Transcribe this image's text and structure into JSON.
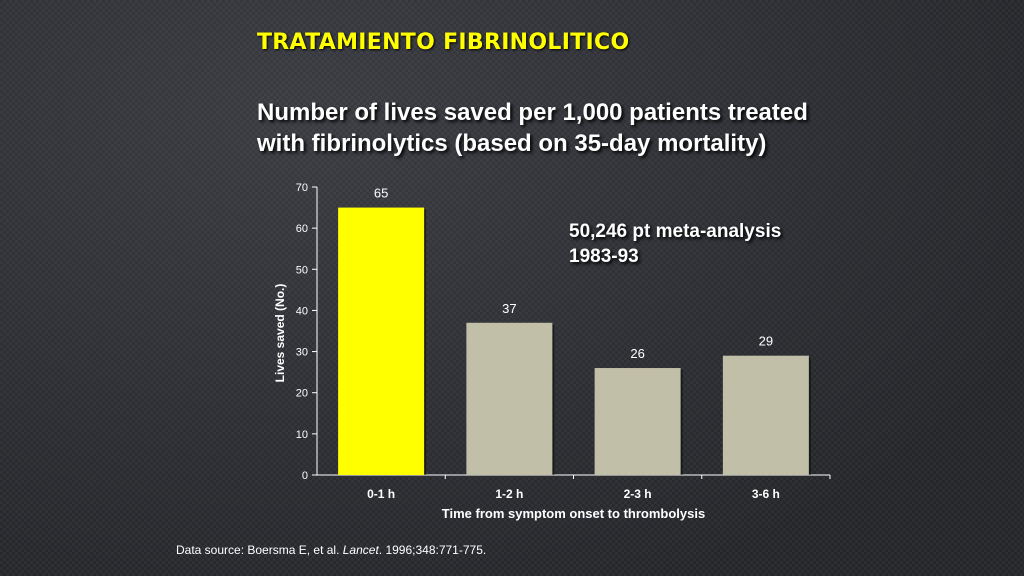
{
  "heading": "TRATAMIENTO FIBRINOLITICO",
  "subtitle_line1": "Number of lives saved per 1,000 patients treated",
  "subtitle_line2": "with fibrinolytics (based on 35-day mortality)",
  "annotation_line1": "50,246 pt meta-analysis",
  "annotation_line2": "1983-93",
  "source": {
    "prefix": "Data source: Boersma E, et al. ",
    "journal": "Lancet",
    "suffix": ". 1996;348:771-775."
  },
  "colors": {
    "highlight_bar": "#ffff00",
    "bar": "#c2bfa8",
    "text": "#ffffff",
    "heading": "#ffff00"
  },
  "chart_data": {
    "type": "bar",
    "categories": [
      "0-1 h",
      "1-2 h",
      "2-3 h",
      "3-6 h"
    ],
    "values": [
      65,
      37,
      26,
      29
    ],
    "data_labels": [
      "65",
      "37",
      "26",
      "29"
    ],
    "highlight_index": 0,
    "xlabel": "Time from symptom onset to thrombolysis",
    "ylabel": "Lives saved (No.)",
    "ylim": [
      0,
      70
    ],
    "yticks": [
      0,
      10,
      20,
      30,
      40,
      50,
      60,
      70
    ],
    "grid": false,
    "legend": "none"
  }
}
